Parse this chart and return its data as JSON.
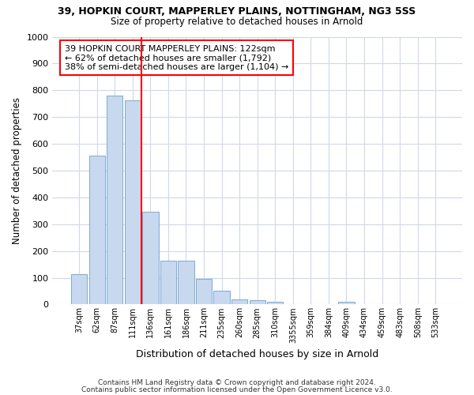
{
  "title1": "39, HOPKIN COURT, MAPPERLEY PLAINS, NOTTINGHAM, NG3 5SS",
  "title2": "Size of property relative to detached houses in Arnold",
  "xlabel": "Distribution of detached houses by size in Arnold",
  "ylabel": "Number of detached properties",
  "categories": [
    "37sqm",
    "62sqm",
    "87sqm",
    "111sqm",
    "136sqm",
    "161sqm",
    "186sqm",
    "211sqm",
    "235sqm",
    "260sqm",
    "285sqm",
    "310sqm",
    "3355sqm",
    "359sqm",
    "384sqm",
    "409sqm",
    "434sqm",
    "459sqm",
    "483sqm",
    "508sqm",
    "533sqm"
  ],
  "values": [
    113,
    556,
    779,
    762,
    347,
    163,
    163,
    96,
    52,
    18,
    15,
    10,
    0,
    0,
    0,
    10,
    0,
    0,
    0,
    0,
    0
  ],
  "bar_color": "#c8d8ee",
  "bar_edge_color": "#7aacd4",
  "annotation_text": "39 HOPKIN COURT MAPPERLEY PLAINS: 122sqm\n← 62% of detached houses are smaller (1,792)\n38% of semi-detached houses are larger (1,104) →",
  "annotation_box_color": "white",
  "annotation_box_edge_color": "red",
  "red_line_index": 3.5,
  "ylim": [
    0,
    1000
  ],
  "yticks": [
    0,
    100,
    200,
    300,
    400,
    500,
    600,
    700,
    800,
    900,
    1000
  ],
  "footer1": "Contains HM Land Registry data © Crown copyright and database right 2024.",
  "footer2": "Contains public sector information licensed under the Open Government Licence v3.0.",
  "background_color": "#ffffff",
  "grid_color": "#d0d8e8"
}
